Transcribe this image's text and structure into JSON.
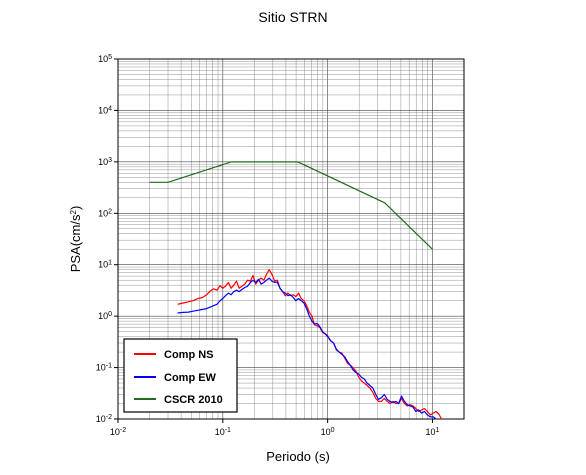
{
  "chart_data": {
    "type": "line",
    "title": "Sitio STRN",
    "xlabel": "Periodo (s)",
    "ylabel": {
      "base": "PSA(cm/s",
      "sup": "2",
      "tail": ")"
    },
    "x_scale": "log",
    "y_scale": "log",
    "xlim": [
      0.01,
      20
    ],
    "ylim": [
      0.01,
      100000
    ],
    "x_ticks": [
      {
        "base": "10",
        "exp": "-2",
        "value": 0.01
      },
      {
        "base": "10",
        "exp": "-1",
        "value": 0.1
      },
      {
        "base": "10",
        "exp": "0",
        "value": 1
      },
      {
        "base": "10",
        "exp": "1",
        "value": 10
      }
    ],
    "y_ticks": [
      {
        "base": "10",
        "exp": "-2",
        "value": 0.01
      },
      {
        "base": "10",
        "exp": "-1",
        "value": 0.1
      },
      {
        "base": "10",
        "exp": "0",
        "value": 1
      },
      {
        "base": "10",
        "exp": "1",
        "value": 10
      },
      {
        "base": "10",
        "exp": "2",
        "value": 100
      },
      {
        "base": "10",
        "exp": "3",
        "value": 1000
      },
      {
        "base": "10",
        "exp": "4",
        "value": 10000
      },
      {
        "base": "10",
        "exp": "5",
        "value": 100000
      }
    ],
    "grid": true,
    "legend_position": "bottom-left",
    "series": [
      {
        "name": "Comp NS",
        "color": "#ff0000",
        "points": [
          [
            0.037,
            1.7
          ],
          [
            0.042,
            1.8
          ],
          [
            0.047,
            1.9
          ],
          [
            0.052,
            2.0
          ],
          [
            0.058,
            2.2
          ],
          [
            0.064,
            2.3
          ],
          [
            0.07,
            2.6
          ],
          [
            0.076,
            3.1
          ],
          [
            0.082,
            3.4
          ],
          [
            0.088,
            3.2
          ],
          [
            0.094,
            3.9
          ],
          [
            0.1,
            3.5
          ],
          [
            0.106,
            3.8
          ],
          [
            0.113,
            4.5
          ],
          [
            0.12,
            3.5
          ],
          [
            0.127,
            4.0
          ],
          [
            0.135,
            4.8
          ],
          [
            0.143,
            3.5
          ],
          [
            0.152,
            3.8
          ],
          [
            0.162,
            4.2
          ],
          [
            0.172,
            5.0
          ],
          [
            0.183,
            4.8
          ],
          [
            0.194,
            6.2
          ],
          [
            0.206,
            4.2
          ],
          [
            0.219,
            5.0
          ],
          [
            0.232,
            5.5
          ],
          [
            0.246,
            5.0
          ],
          [
            0.261,
            6.5
          ],
          [
            0.277,
            8.0
          ],
          [
            0.294,
            6.5
          ],
          [
            0.312,
            4.8
          ],
          [
            0.331,
            5.0
          ],
          [
            0.351,
            3.5
          ],
          [
            0.372,
            3.0
          ],
          [
            0.394,
            2.5
          ],
          [
            0.418,
            2.8
          ],
          [
            0.443,
            2.5
          ],
          [
            0.47,
            2.6
          ],
          [
            0.498,
            2.4
          ],
          [
            0.528,
            2.8
          ],
          [
            0.56,
            2.2
          ],
          [
            0.594,
            2.0
          ],
          [
            0.63,
            1.6
          ],
          [
            0.668,
            1.2
          ],
          [
            0.708,
            1.0
          ],
          [
            0.75,
            0.68
          ],
          [
            0.795,
            0.65
          ],
          [
            0.843,
            0.6
          ],
          [
            0.894,
            0.48
          ],
          [
            0.95,
            0.45
          ],
          [
            1.0,
            0.42
          ],
          [
            1.07,
            0.33
          ],
          [
            1.14,
            0.3
          ],
          [
            1.21,
            0.22
          ],
          [
            1.29,
            0.2
          ],
          [
            1.37,
            0.19
          ],
          [
            1.46,
            0.15
          ],
          [
            1.55,
            0.12
          ],
          [
            1.65,
            0.11
          ],
          [
            1.75,
            0.1
          ],
          [
            1.86,
            0.085
          ],
          [
            1.98,
            0.065
          ],
          [
            2.1,
            0.055
          ],
          [
            2.24,
            0.05
          ],
          [
            2.38,
            0.045
          ],
          [
            2.53,
            0.04
          ],
          [
            2.7,
            0.033
          ],
          [
            2.88,
            0.025
          ],
          [
            3.06,
            0.022
          ],
          [
            3.26,
            0.022
          ],
          [
            3.47,
            0.025
          ],
          [
            3.7,
            0.022
          ],
          [
            3.94,
            0.02
          ],
          [
            4.2,
            0.022
          ],
          [
            4.47,
            0.02
          ],
          [
            4.76,
            0.02
          ],
          [
            5.07,
            0.025
          ],
          [
            5.4,
            0.02
          ],
          [
            5.75,
            0.018
          ],
          [
            6.12,
            0.019
          ],
          [
            6.52,
            0.018
          ],
          [
            6.95,
            0.016
          ],
          [
            7.4,
            0.014
          ],
          [
            7.88,
            0.015
          ],
          [
            8.4,
            0.016
          ],
          [
            8.95,
            0.014
          ],
          [
            9.53,
            0.012
          ],
          [
            10.2,
            0.013
          ],
          [
            10.8,
            0.014
          ],
          [
            11.5,
            0.0125
          ],
          [
            12.2,
            0.01
          ]
        ]
      },
      {
        "name": "Comp EW",
        "color": "#0000ff",
        "points": [
          [
            0.037,
            1.15
          ],
          [
            0.042,
            1.18
          ],
          [
            0.047,
            1.2
          ],
          [
            0.052,
            1.25
          ],
          [
            0.058,
            1.3
          ],
          [
            0.064,
            1.35
          ],
          [
            0.07,
            1.4
          ],
          [
            0.076,
            1.5
          ],
          [
            0.082,
            1.6
          ],
          [
            0.088,
            1.7
          ],
          [
            0.094,
            2.0
          ],
          [
            0.1,
            2.2
          ],
          [
            0.106,
            2.5
          ],
          [
            0.113,
            2.8
          ],
          [
            0.12,
            2.6
          ],
          [
            0.127,
            3.0
          ],
          [
            0.135,
            3.2
          ],
          [
            0.143,
            3.0
          ],
          [
            0.152,
            3.3
          ],
          [
            0.162,
            3.6
          ],
          [
            0.172,
            3.8
          ],
          [
            0.183,
            4.5
          ],
          [
            0.194,
            5.0
          ],
          [
            0.206,
            4.5
          ],
          [
            0.219,
            5.2
          ],
          [
            0.232,
            4.2
          ],
          [
            0.246,
            4.5
          ],
          [
            0.261,
            5.0
          ],
          [
            0.277,
            5.5
          ],
          [
            0.294,
            4.8
          ],
          [
            0.312,
            4.5
          ],
          [
            0.331,
            4.6
          ],
          [
            0.351,
            3.5
          ],
          [
            0.372,
            3.0
          ],
          [
            0.394,
            2.8
          ],
          [
            0.418,
            2.5
          ],
          [
            0.443,
            2.6
          ],
          [
            0.47,
            2.3
          ],
          [
            0.498,
            2.0
          ],
          [
            0.528,
            2.2
          ],
          [
            0.56,
            2.0
          ],
          [
            0.594,
            1.8
          ],
          [
            0.63,
            1.4
          ],
          [
            0.668,
            1.0
          ],
          [
            0.708,
            0.8
          ],
          [
            0.75,
            0.7
          ],
          [
            0.795,
            0.72
          ],
          [
            0.843,
            0.62
          ],
          [
            0.894,
            0.5
          ],
          [
            0.95,
            0.45
          ],
          [
            1.0,
            0.4
          ],
          [
            1.07,
            0.33
          ],
          [
            1.14,
            0.3
          ],
          [
            1.21,
            0.23
          ],
          [
            1.29,
            0.2
          ],
          [
            1.37,
            0.18
          ],
          [
            1.46,
            0.16
          ],
          [
            1.55,
            0.13
          ],
          [
            1.65,
            0.11
          ],
          [
            1.75,
            0.09
          ],
          [
            1.86,
            0.08
          ],
          [
            1.98,
            0.075
          ],
          [
            2.1,
            0.065
          ],
          [
            2.24,
            0.06
          ],
          [
            2.38,
            0.05
          ],
          [
            2.53,
            0.045
          ],
          [
            2.7,
            0.04
          ],
          [
            2.88,
            0.03
          ],
          [
            3.06,
            0.024
          ],
          [
            3.26,
            0.026
          ],
          [
            3.47,
            0.03
          ],
          [
            3.7,
            0.024
          ],
          [
            3.94,
            0.022
          ],
          [
            4.2,
            0.021
          ],
          [
            4.47,
            0.022
          ],
          [
            4.76,
            0.02
          ],
          [
            5.07,
            0.028
          ],
          [
            5.4,
            0.022
          ],
          [
            5.75,
            0.019
          ],
          [
            6.12,
            0.018
          ],
          [
            6.52,
            0.017
          ],
          [
            6.95,
            0.014
          ],
          [
            7.4,
            0.015
          ],
          [
            7.88,
            0.013
          ],
          [
            8.4,
            0.014
          ],
          [
            8.95,
            0.012
          ],
          [
            9.53,
            0.011
          ],
          [
            10.2,
            0.011
          ],
          [
            10.8,
            0.01
          ]
        ]
      },
      {
        "name": "CSCR 2010",
        "color": "#1f6b1f",
        "points": [
          [
            0.02,
            400
          ],
          [
            0.03,
            400
          ],
          [
            0.12,
            1000
          ],
          [
            0.52,
            1000
          ],
          [
            3.5,
            160
          ],
          [
            10,
            20
          ]
        ]
      }
    ]
  }
}
